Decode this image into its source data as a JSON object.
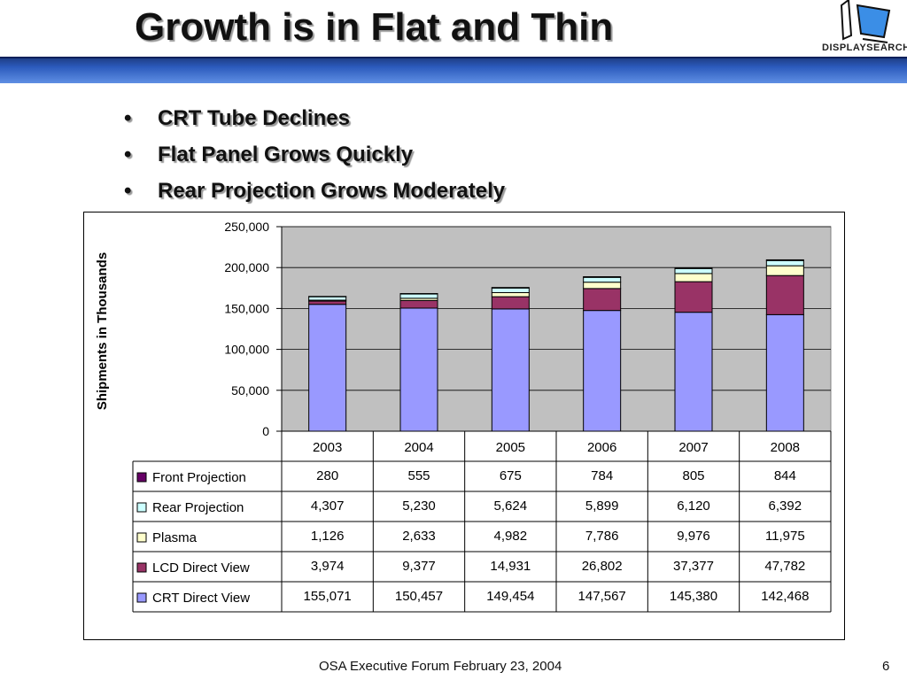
{
  "slide": {
    "title": "Growth is in Flat and Thin",
    "logo_text": "DISPLAYSEARCH",
    "bullets": [
      "CRT Tube Declines",
      "Flat Panel Grows Quickly",
      "Rear Projection Grows Moderately"
    ],
    "footer": "OSA Executive Forum February 23, 2004",
    "page_number": "6",
    "bullet_glyph": "•"
  },
  "colors": {
    "plot_background": "#c0c0c0",
    "front_projection": "#660066",
    "rear_projection": "#ccffff",
    "plasma": "#ffffcc",
    "lcd_direct_view": "#993366",
    "crt_direct_view": "#9999ff"
  },
  "chart_data": {
    "type": "bar",
    "stacked": true,
    "ylabel": "Shipments in Thousands",
    "xlabel": "",
    "ylim": [
      0,
      250000
    ],
    "yticks": [
      0,
      50000,
      100000,
      150000,
      200000,
      250000
    ],
    "ytick_labels": [
      "0",
      "50,000",
      "100,000",
      "150,000",
      "200,000",
      "250,000"
    ],
    "grid": true,
    "legend": "data-table",
    "categories": [
      "2003",
      "2004",
      "2005",
      "2006",
      "2007",
      "2008"
    ],
    "series": [
      {
        "name": "Front Projection",
        "values": [
          280,
          555,
          675,
          784,
          805,
          844
        ],
        "labels": [
          "280",
          "555",
          "675",
          "784",
          "805",
          "844"
        ],
        "color": "#660066"
      },
      {
        "name": "Rear Projection",
        "values": [
          4307,
          5230,
          5624,
          5899,
          6120,
          6392
        ],
        "labels": [
          "4,307",
          "5,230",
          "5,624",
          "5,899",
          "6,120",
          "6,392"
        ],
        "color": "#ccffff"
      },
      {
        "name": "Plasma",
        "values": [
          1126,
          2633,
          4982,
          7786,
          9976,
          11975
        ],
        "labels": [
          "1,126",
          "2,633",
          "4,982",
          "7,786",
          "9,976",
          "11,975"
        ],
        "color": "#ffffcc"
      },
      {
        "name": "LCD Direct View",
        "values": [
          3974,
          9377,
          14931,
          26802,
          37377,
          47782
        ],
        "labels": [
          "3,974",
          "9,377",
          "14,931",
          "26,802",
          "37,377",
          "47,782"
        ],
        "color": "#993366"
      },
      {
        "name": "CRT Direct View",
        "values": [
          155071,
          150457,
          149454,
          147567,
          145380,
          142468
        ],
        "labels": [
          "155,071",
          "150,457",
          "149,454",
          "147,567",
          "145,380",
          "142,468"
        ],
        "color": "#9999ff"
      }
    ]
  }
}
